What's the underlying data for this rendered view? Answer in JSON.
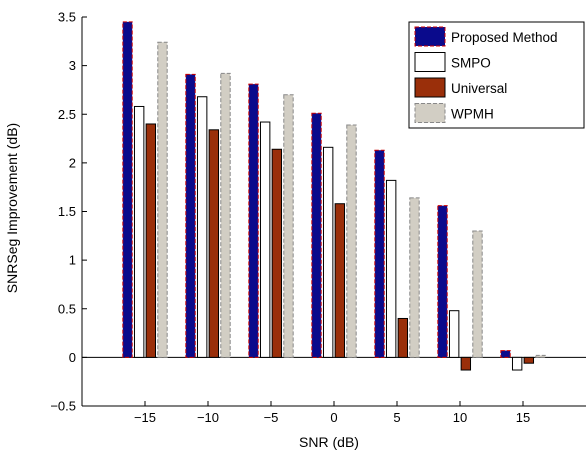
{
  "chart_data": {
    "type": "bar",
    "categories": [
      "-15",
      "-10",
      "-5",
      "0",
      "5",
      "10",
      "15"
    ],
    "category_tick_labels": [
      "−15",
      "−10",
      "−5",
      "0",
      "5",
      "10",
      "15"
    ],
    "x_values": [
      -15,
      -10,
      -5,
      0,
      5,
      10,
      15
    ],
    "series": [
      {
        "name": "Proposed Method",
        "values": [
          3.45,
          2.91,
          2.81,
          2.51,
          2.13,
          1.56,
          0.07
        ],
        "color": "#0a0a8c",
        "edge": "#cc0000",
        "dashed": true
      },
      {
        "name": "SMPO",
        "values": [
          2.58,
          2.68,
          2.42,
          2.16,
          1.82,
          0.48,
          -0.13
        ],
        "color": "#ffffff",
        "edge": "#000000",
        "dashed": false
      },
      {
        "name": "Universal",
        "values": [
          2.4,
          2.34,
          2.14,
          1.58,
          0.4,
          -0.13,
          -0.06
        ],
        "color": "#9a2f0a",
        "edge": "#000000",
        "dashed": false
      },
      {
        "name": "WPMH",
        "values": [
          3.24,
          2.92,
          2.7,
          2.39,
          1.64,
          1.3,
          0.02
        ],
        "color": "#d2cec4",
        "edge": "#888888",
        "dashed": true
      }
    ],
    "xlabel": "SNR (dB)",
    "ylabel": "SNRSeg Improvement (dB)",
    "ylim": [
      -0.5,
      3.5
    ],
    "xlim": [
      -20,
      20
    ],
    "yticks": [
      -0.5,
      0,
      0.5,
      1,
      1.5,
      2,
      2.5,
      3,
      3.5
    ],
    "ytick_labels": [
      "−0.5",
      "0",
      "0.5",
      "1",
      "1.5",
      "2",
      "2.5",
      "3",
      "3.5"
    ],
    "zero_line": true,
    "grid": false,
    "legend_position": "top-right"
  }
}
